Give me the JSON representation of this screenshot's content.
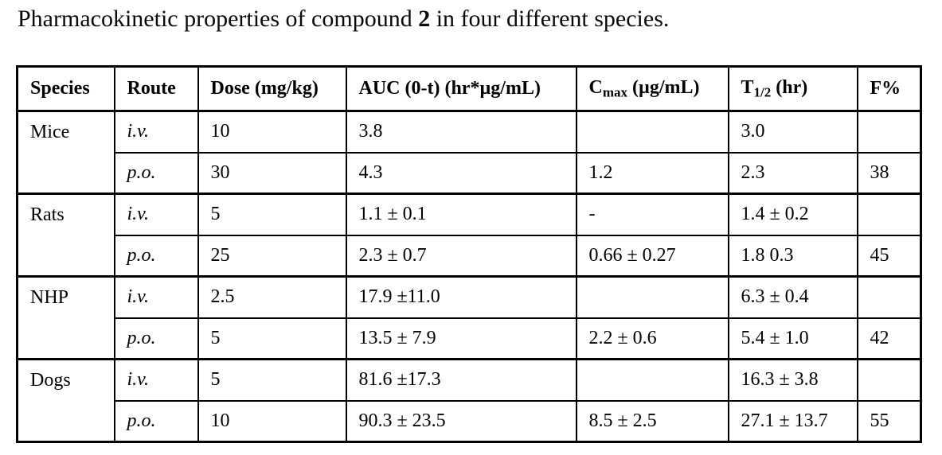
{
  "title": {
    "text_before": "Pharmacokinetic properties of compound ",
    "compound_number": "2",
    "text_after": " in four different species."
  },
  "colors": {
    "text": "#000000",
    "border": "#000000",
    "background": "#ffffff"
  },
  "table": {
    "headers": [
      {
        "label": "Species"
      },
      {
        "label": "Route"
      },
      {
        "label": "Dose (mg/kg)"
      },
      {
        "label": "AUC (0-t) (hr*µg/mL)"
      },
      {
        "base": "C",
        "sub": "max",
        "rest": " (µg/mL)"
      },
      {
        "base": "T",
        "sub": "1/2",
        "rest": " (hr)"
      },
      {
        "label": "F%"
      }
    ],
    "groups": [
      {
        "species": "Mice",
        "rows": [
          {
            "route": "i.v.",
            "dose": "10",
            "auc": "3.8",
            "cmax": "",
            "t_half": "3.0",
            "f": ""
          },
          {
            "route": "p.o.",
            "dose": "30",
            "auc": "4.3",
            "cmax": "1.2",
            "t_half": "2.3",
            "f": "38"
          }
        ]
      },
      {
        "species": "Rats",
        "rows": [
          {
            "route": "i.v.",
            "dose": "5",
            "auc": "1.1 ± 0.1",
            "cmax": "-",
            "t_half": "1.4 ± 0.2",
            "f": ""
          },
          {
            "route": "p.o.",
            "dose": "25",
            "auc": "2.3 ± 0.7",
            "cmax": "0.66 ± 0.27",
            "t_half": "1.8 0.3",
            "f": "45"
          }
        ]
      },
      {
        "species": "NHP",
        "rows": [
          {
            "route": "i.v.",
            "dose": "2.5",
            "auc": "17.9 ±11.0",
            "cmax": "",
            "t_half": "6.3 ± 0.4",
            "f": ""
          },
          {
            "route": "p.o.",
            "dose": "5",
            "auc": "13.5 ± 7.9",
            "cmax": "2.2 ± 0.6",
            "t_half": "5.4 ± 1.0",
            "f": "42"
          }
        ]
      },
      {
        "species": "Dogs",
        "rows": [
          {
            "route": "i.v.",
            "dose": "5",
            "auc": "81.6 ±17.3",
            "cmax": "",
            "t_half": "16.3 ± 3.8",
            "f": ""
          },
          {
            "route": "p.o.",
            "dose": "10",
            "auc": "90.3 ± 23.5",
            "cmax": "8.5 ± 2.5",
            "t_half": "27.1 ± 13.7",
            "f": "55"
          }
        ]
      }
    ]
  }
}
